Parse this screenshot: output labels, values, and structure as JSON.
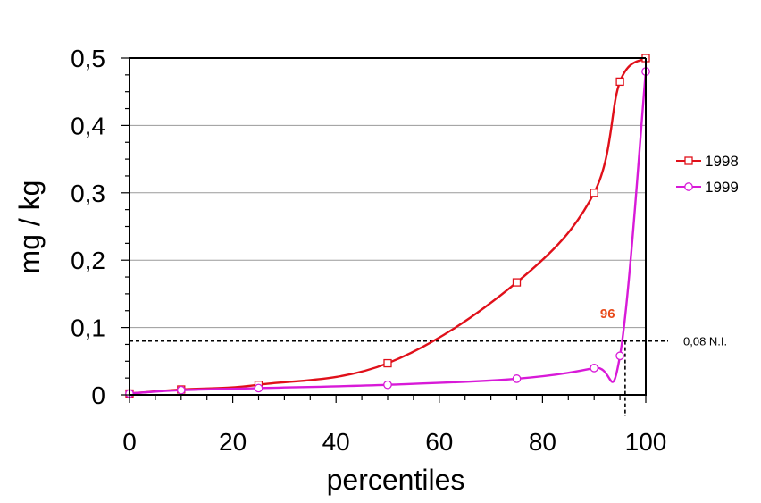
{
  "chart_data": {
    "type": "line",
    "xlabel": "percentiles",
    "ylabel": "mg / kg",
    "xlim": [
      0,
      100
    ],
    "ylim": [
      0,
      0.5
    ],
    "x_ticks": [
      "0",
      "20",
      "40",
      "60",
      "80",
      "100"
    ],
    "y_ticks": [
      "0",
      "0,1",
      "0,2",
      "0,3",
      "0,4",
      "0,5"
    ],
    "grid": "horizontal",
    "legend_position": "right",
    "series": [
      {
        "name": "1998",
        "color": "#e0101a",
        "marker": "square",
        "points": [
          [
            0,
            0.002
          ],
          [
            10,
            0.008
          ],
          [
            25,
            0.015
          ],
          [
            50,
            0.047
          ],
          [
            75,
            0.167
          ],
          [
            90,
            0.3
          ],
          [
            95,
            0.465
          ],
          [
            100,
            0.5
          ]
        ]
      },
      {
        "name": "1999",
        "color": "#d81ad8",
        "marker": "circle",
        "points": [
          [
            0,
            0.002
          ],
          [
            10,
            0.007
          ],
          [
            25,
            0.01
          ],
          [
            50,
            0.015
          ],
          [
            75,
            0.024
          ],
          [
            90,
            0.04
          ],
          [
            95,
            0.058
          ],
          [
            100,
            0.48
          ]
        ]
      }
    ],
    "reference_line": {
      "y": 0.08,
      "label": "0,08 N.I.",
      "style": "dashed"
    },
    "annotation": {
      "text": "96",
      "x": 96,
      "color": "#e84a1a"
    }
  }
}
